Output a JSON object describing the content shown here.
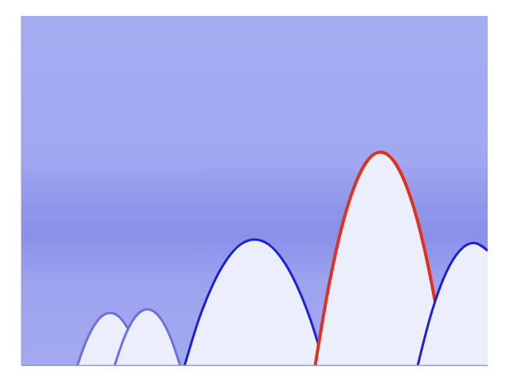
{
  "chart_data": {
    "type": "area",
    "xlim": [
      0,
      100
    ],
    "ylim": [
      0,
      100
    ],
    "xticks": [],
    "yticks": [],
    "tick_labels": false,
    "grid": false,
    "series": [
      {
        "color": "#6c70de",
        "x": [
          12,
          14,
          16,
          18,
          19,
          20,
          22,
          24,
          26
        ],
        "values": [
          0,
          7.3,
          12.2,
          14.7,
          15,
          14.7,
          12.2,
          7.3,
          0
        ]
      },
      {
        "color": "#6c70de",
        "x": [
          20,
          22,
          24,
          26,
          27,
          28,
          30,
          32,
          34
        ],
        "values": [
          0,
          7.8,
          13.1,
          15.7,
          16,
          15.7,
          13.1,
          7.8,
          0
        ]
      },
      {
        "color": "#1c20d8",
        "x": [
          35,
          38,
          41,
          44,
          47,
          50,
          53,
          56,
          59,
          62,
          65
        ],
        "values": [
          0,
          13,
          23,
          30.2,
          34.6,
          36,
          34.6,
          30.2,
          23,
          13,
          0
        ]
      },
      {
        "color": "#e0301e",
        "x": [
          63,
          66,
          69,
          72,
          74,
          76,
          77,
          78,
          80,
          82,
          85,
          88,
          91
        ],
        "values": [
          0,
          23.3,
          41.1,
          53.2,
          58.2,
          60.7,
          61,
          60.7,
          58.2,
          53.2,
          41.1,
          23.3,
          0
        ]
      },
      {
        "color": "#1c20d8",
        "x": [
          85,
          88,
          91,
          94,
          97,
          100
        ],
        "values": [
          0,
          15.3,
          26.3,
          32.8,
          35,
          32.8
        ]
      }
    ]
  }
}
